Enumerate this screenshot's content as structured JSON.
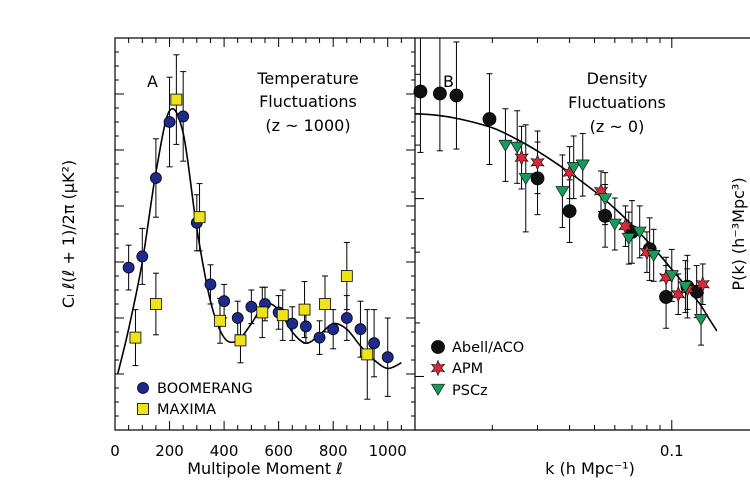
{
  "chart_data": [
    {
      "panel": "A",
      "type": "scatter",
      "title_lines": [
        "Temperature",
        "Fluctuations",
        "(z ~ 1000)"
      ],
      "xlabel": "Multipole Moment ℓ",
      "ylabel": "Cₗ ℓ(ℓ + 1)/2π (μK²)",
      "xlim": [
        0,
        1100
      ],
      "ylim": [
        0,
        7000
      ],
      "xticks": [
        0,
        200,
        400,
        600,
        800,
        1000
      ],
      "xtick_labels": [
        "0",
        "200",
        "400",
        "600",
        "800",
        "1000"
      ],
      "legend_position": "bottom-left",
      "series": [
        {
          "name": "BOOMERANG",
          "marker": "circle",
          "color": "#1c2a8c",
          "points": [
            {
              "x": 50,
              "y": 2900,
              "err": 400
            },
            {
              "x": 100,
              "y": 3100,
              "err": 500
            },
            {
              "x": 150,
              "y": 4500,
              "err": 700
            },
            {
              "x": 200,
              "y": 5500,
              "err": 800
            },
            {
              "x": 250,
              "y": 5600,
              "err": 800
            },
            {
              "x": 300,
              "y": 3700,
              "err": 500
            },
            {
              "x": 350,
              "y": 2600,
              "err": 350
            },
            {
              "x": 400,
              "y": 2300,
              "err": 300
            },
            {
              "x": 450,
              "y": 2000,
              "err": 300
            },
            {
              "x": 500,
              "y": 2200,
              "err": 300
            },
            {
              "x": 550,
              "y": 2250,
              "err": 300
            },
            {
              "x": 600,
              "y": 2100,
              "err": 300
            },
            {
              "x": 650,
              "y": 1900,
              "err": 300
            },
            {
              "x": 700,
              "y": 1850,
              "err": 300
            },
            {
              "x": 750,
              "y": 1650,
              "err": 300
            },
            {
              "x": 800,
              "y": 1800,
              "err": 350
            },
            {
              "x": 850,
              "y": 2000,
              "err": 400
            },
            {
              "x": 900,
              "y": 1800,
              "err": 500
            },
            {
              "x": 950,
              "y": 1550,
              "err": 600
            },
            {
              "x": 1000,
              "y": 1300,
              "err": 700
            }
          ]
        },
        {
          "name": "MAXIMA",
          "marker": "square",
          "color": "#f0e21a",
          "points": [
            {
              "x": 75,
              "y": 1650,
              "err": 500
            },
            {
              "x": 150,
              "y": 2250,
              "err": 550
            },
            {
              "x": 225,
              "y": 5900,
              "err": 800
            },
            {
              "x": 310,
              "y": 3800,
              "err": 600
            },
            {
              "x": 385,
              "y": 1950,
              "err": 400
            },
            {
              "x": 460,
              "y": 1600,
              "err": 400
            },
            {
              "x": 540,
              "y": 2100,
              "err": 450
            },
            {
              "x": 615,
              "y": 2050,
              "err": 450
            },
            {
              "x": 695,
              "y": 2150,
              "err": 500
            },
            {
              "x": 770,
              "y": 2250,
              "err": 500
            },
            {
              "x": 850,
              "y": 2750,
              "err": 600
            },
            {
              "x": 925,
              "y": 1350,
              "err": 800
            }
          ]
        }
      ],
      "model_curve": {
        "x": [
          10,
          50,
          100,
          150,
          200,
          250,
          300,
          350,
          400,
          450,
          500,
          550,
          600,
          650,
          700,
          750,
          800,
          850,
          900,
          950,
          1000,
          1050
        ],
        "y": [
          1000,
          1800,
          3000,
          4600,
          5700,
          5300,
          3600,
          2300,
          1650,
          1600,
          1900,
          2250,
          2150,
          1750,
          1550,
          1700,
          1900,
          1800,
          1500,
          1250,
          1100,
          1200
        ]
      }
    },
    {
      "panel": "B",
      "type": "scatter",
      "title_lines": [
        "Density",
        "Fluctuations",
        "(z ~ 0)"
      ],
      "xlabel": "k (h Mpc⁻¹)",
      "ylabel": "P(k) (h⁻³Mpc³)",
      "xscale": "log",
      "xlim": [
        0.01,
        0.15
      ],
      "yscale": "log",
      "ylim": [
        500,
        80000
      ],
      "xticks": [
        0.1
      ],
      "xtick_labels": [
        "0.1"
      ],
      "legend_position": "bottom-left",
      "series": [
        {
          "name": "Abell/ACO",
          "marker": "circle",
          "color": "#111111",
          "points": [
            {
              "x": 0.0105,
              "y": 40000,
              "err_factor": 2.2
            },
            {
              "x": 0.0125,
              "y": 39000,
              "err_factor": 2.1
            },
            {
              "x": 0.0145,
              "y": 38000,
              "err_factor": 2.0
            },
            {
              "x": 0.0195,
              "y": 28000,
              "err_factor": 1.8
            },
            {
              "x": 0.03,
              "y": 13000,
              "err_factor": 1.6
            },
            {
              "x": 0.04,
              "y": 8500,
              "err_factor": 1.5
            },
            {
              "x": 0.055,
              "y": 8000,
              "err_factor": 1.5
            },
            {
              "x": 0.07,
              "y": 6500,
              "err_factor": 1.5
            },
            {
              "x": 0.082,
              "y": 5200,
              "err_factor": 1.5
            },
            {
              "x": 0.095,
              "y": 2800,
              "err_factor": 1.5
            },
            {
              "x": 0.115,
              "y": 3200,
              "err_factor": 1.5
            },
            {
              "x": 0.125,
              "y": 3000,
              "err_factor": 1.4
            }
          ]
        },
        {
          "name": "APM",
          "marker": "star",
          "color": "#d42a3a",
          "points": [
            {
              "x": 0.026,
              "y": 17000,
              "err_factor": 1.5
            },
            {
              "x": 0.03,
              "y": 16000,
              "err_factor": 1.5
            },
            {
              "x": 0.04,
              "y": 14000,
              "err_factor": 1.4
            },
            {
              "x": 0.053,
              "y": 11000,
              "err_factor": 1.3
            },
            {
              "x": 0.066,
              "y": 7000,
              "err_factor": 1.3
            },
            {
              "x": 0.08,
              "y": 5000,
              "err_factor": 1.3
            },
            {
              "x": 0.095,
              "y": 3600,
              "err_factor": 1.3
            },
            {
              "x": 0.106,
              "y": 2900,
              "err_factor": 1.3
            },
            {
              "x": 0.115,
              "y": 3100,
              "err_factor": 1.3
            },
            {
              "x": 0.132,
              "y": 3300,
              "err_factor": 1.3
            }
          ]
        },
        {
          "name": "PSCz",
          "marker": "triangle-down",
          "color": "#1a9a5a",
          "points": [
            {
              "x": 0.0225,
              "y": 20000,
              "err_factor": 1.6
            },
            {
              "x": 0.025,
              "y": 19500,
              "err_factor": 1.6
            },
            {
              "x": 0.027,
              "y": 13000,
              "err_factor": 2.0
            },
            {
              "x": 0.0375,
              "y": 11000,
              "err_factor": 1.6
            },
            {
              "x": 0.0415,
              "y": 15000,
              "err_factor": 1.5
            },
            {
              "x": 0.045,
              "y": 15500,
              "err_factor": 1.5
            },
            {
              "x": 0.055,
              "y": 10000,
              "err_factor": 1.4
            },
            {
              "x": 0.06,
              "y": 7200,
              "err_factor": 1.4
            },
            {
              "x": 0.068,
              "y": 6000,
              "err_factor": 1.4
            },
            {
              "x": 0.075,
              "y": 6500,
              "err_factor": 1.4
            },
            {
              "x": 0.085,
              "y": 4800,
              "err_factor": 1.4
            },
            {
              "x": 0.1,
              "y": 3700,
              "err_factor": 1.4
            },
            {
              "x": 0.113,
              "y": 3200,
              "err_factor": 1.4
            },
            {
              "x": 0.13,
              "y": 2100,
              "err_factor": 1.4
            }
          ]
        }
      ],
      "model_curve": {
        "x": [
          0.01,
          0.012,
          0.015,
          0.02,
          0.025,
          0.03,
          0.04,
          0.05,
          0.06,
          0.07,
          0.08,
          0.09,
          0.1,
          0.11,
          0.12,
          0.13,
          0.14,
          0.15
        ],
        "y": [
          30000,
          29500,
          28000,
          25000,
          21500,
          18500,
          14000,
          11000,
          8800,
          7100,
          5800,
          4800,
          4000,
          3400,
          2900,
          2500,
          2100,
          1800
        ]
      }
    }
  ]
}
